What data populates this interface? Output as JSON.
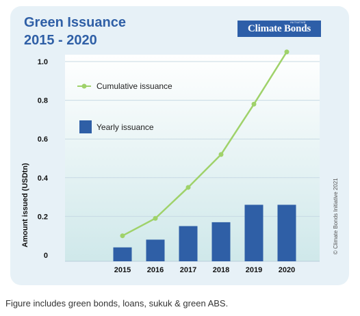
{
  "title": {
    "line1": "Green Issuance",
    "line2": "2015 - 2020"
  },
  "logo": {
    "main": "Climate Bonds",
    "sub": "INITIATIVE"
  },
  "copyright": "© Climate Bonds Initiative 2021",
  "caption": "Figure includes green bonds, loans, sukuk & green ABS.",
  "colors": {
    "bar": "#2f5fa6",
    "line": "#9fd26a",
    "title": "#2f5fa6",
    "card_background": "#e7f1f7"
  },
  "chart_data": {
    "type": "bar",
    "categories": [
      "2015",
      "2016",
      "2017",
      "2018",
      "2019",
      "2020"
    ],
    "ylabel": "Amount issued (USDtn)",
    "xlabel": "",
    "ylim": [
      0,
      1.0
    ],
    "yticks": [
      "0",
      "0.2",
      "0.4",
      "0.6",
      "0.8",
      "1.0"
    ],
    "grid": true,
    "legend_placement": "top-left",
    "series": [
      {
        "name": "Cumulative issuance",
        "type": "line",
        "values": [
          0.1,
          0.19,
          0.35,
          0.52,
          0.78,
          1.05
        ]
      },
      {
        "name": "Yearly issuance",
        "type": "bar",
        "values": [
          0.04,
          0.08,
          0.15,
          0.17,
          0.26,
          0.26
        ]
      }
    ]
  }
}
